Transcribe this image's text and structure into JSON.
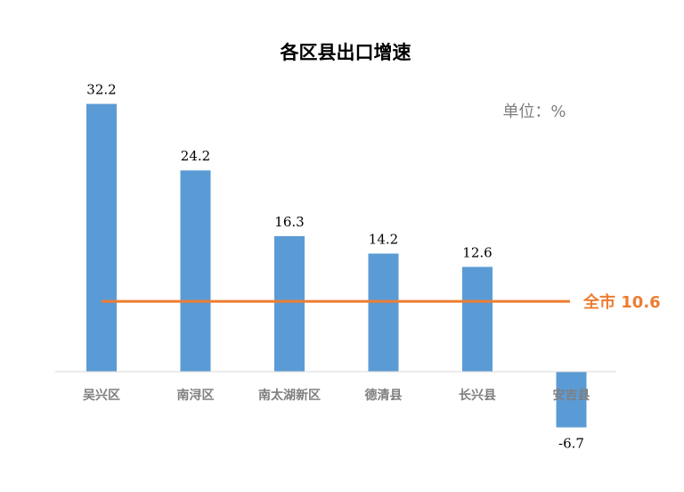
{
  "chart_data": {
    "type": "bar",
    "title": "各区县出口增速",
    "unit_label": "单位：%",
    "categories": [
      "吴兴区",
      "南浔区",
      "南太湖新区",
      "德清县",
      "长兴县",
      "安吉县"
    ],
    "values": [
      32.2,
      24.2,
      16.3,
      14.2,
      12.6,
      -6.7
    ],
    "reference_line": {
      "label": "全市 10.6",
      "value": 10.6
    },
    "ylim": [
      -6.7,
      32.2
    ],
    "grid": false,
    "legend": "none",
    "colors": {
      "bar": "#5b9bd5",
      "reference_line": "#ed7d31",
      "axis": "#d9d9d9"
    }
  }
}
